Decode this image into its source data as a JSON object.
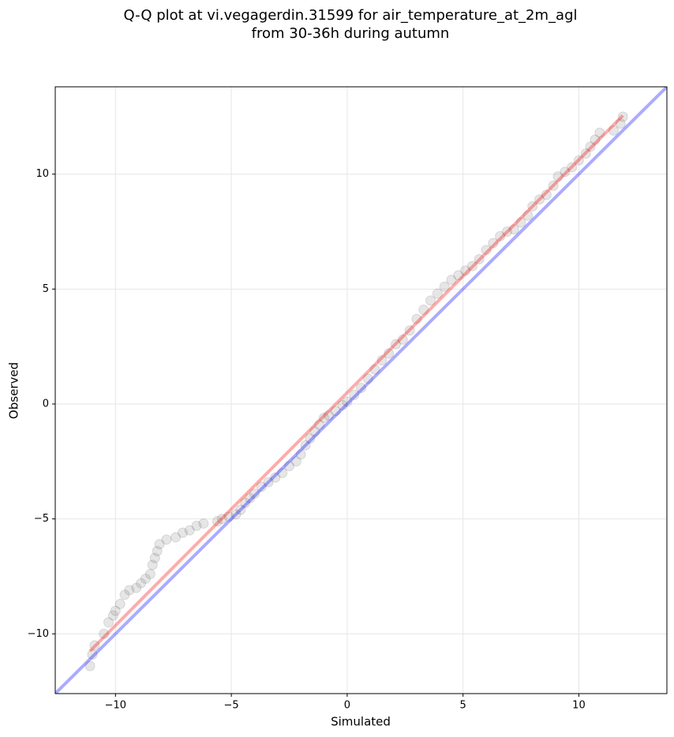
{
  "chart_data": {
    "type": "scatter",
    "title": [
      "Q-Q plot at vi.vegagerdin.31599 for air_temperature_at_2m_agl",
      "from 30-36h during autumn"
    ],
    "xlabel": "Simulated",
    "ylabel": "Observed",
    "xlim": [
      -12.6,
      13.8
    ],
    "ylim": [
      -12.6,
      13.8
    ],
    "xticks": [
      {
        "value": -10,
        "label": "−10"
      },
      {
        "value": -5,
        "label": "−5"
      },
      0,
      5,
      10
    ],
    "yticks": [
      {
        "value": -10,
        "label": "−10"
      },
      {
        "value": -5,
        "label": "−5"
      },
      0,
      5,
      10
    ],
    "grid": true,
    "color": "#808080",
    "x": [
      -11.1,
      -11,
      -10.9,
      -10.5,
      -10.3,
      -10.1,
      -10,
      -9.8,
      -9.6,
      -9.4,
      -9.1,
      -8.9,
      -8.7,
      -8.5,
      -8.4,
      -8.3,
      -8.2,
      -8.1,
      -7.8,
      -7.4,
      -7.1,
      -6.8,
      -6.5,
      -6.2,
      -5.6,
      -5.4,
      -5.1,
      -4.8,
      -4.6,
      -4.4,
      -4.2,
      -4,
      -3.7,
      -3.4,
      -3.1,
      -2.8,
      -2.5,
      -2.2,
      -2,
      -1.8,
      -1.6,
      -1.4,
      -1.2,
      -1,
      -0.8,
      -0.5,
      -0.2,
      0,
      0.3,
      0.6,
      0.9,
      1.2,
      1.5,
      1.8,
      2.1,
      2.4,
      2.7,
      3,
      3.3,
      3.6,
      3.9,
      4.2,
      4.5,
      4.8,
      5.1,
      5.4,
      5.7,
      6,
      6.3,
      6.6,
      6.9,
      7.2,
      7.5,
      7.8,
      8,
      8.3,
      8.6,
      8.9,
      9.1,
      9.4,
      9.7,
      10,
      10.3,
      10.5,
      10.7,
      10.9,
      11.5,
      11.8,
      11.9
    ],
    "values": [
      -11.4,
      -10.9,
      -10.5,
      -10,
      -9.5,
      -9.2,
      -9,
      -8.7,
      -8.3,
      -8.1,
      -8,
      -7.8,
      -7.6,
      -7.4,
      -7,
      -6.7,
      -6.4,
      -6.1,
      -5.9,
      -5.8,
      -5.6,
      -5.5,
      -5.3,
      -5.2,
      -5.1,
      -5,
      -4.9,
      -4.8,
      -4.6,
      -4.3,
      -4.1,
      -3.9,
      -3.6,
      -3.4,
      -3.2,
      -3,
      -2.7,
      -2.5,
      -2.2,
      -1.8,
      -1.5,
      -1.2,
      -0.9,
      -0.6,
      -0.5,
      -0.3,
      -0.05,
      0.1,
      0.4,
      0.7,
      1.1,
      1.5,
      1.9,
      2.2,
      2.6,
      2.8,
      3.2,
      3.7,
      4.1,
      4.5,
      4.8,
      5.1,
      5.4,
      5.6,
      5.8,
      6,
      6.3,
      6.7,
      7,
      7.3,
      7.5,
      7.6,
      7.9,
      8.2,
      8.6,
      8.9,
      9.1,
      9.5,
      9.9,
      10.1,
      10.3,
      10.6,
      10.9,
      11.2,
      11.5,
      11.8,
      11.9,
      12.2,
      12.5
    ],
    "lines": [
      {
        "color": "#0000ff",
        "x": [
          -12.6,
          13.8
        ],
        "values": [
          -12.6,
          13.8
        ]
      },
      {
        "color": "#ff0000",
        "x": [
          -11.1,
          11.9
        ],
        "values": [
          -10.75,
          12.55
        ]
      }
    ]
  }
}
